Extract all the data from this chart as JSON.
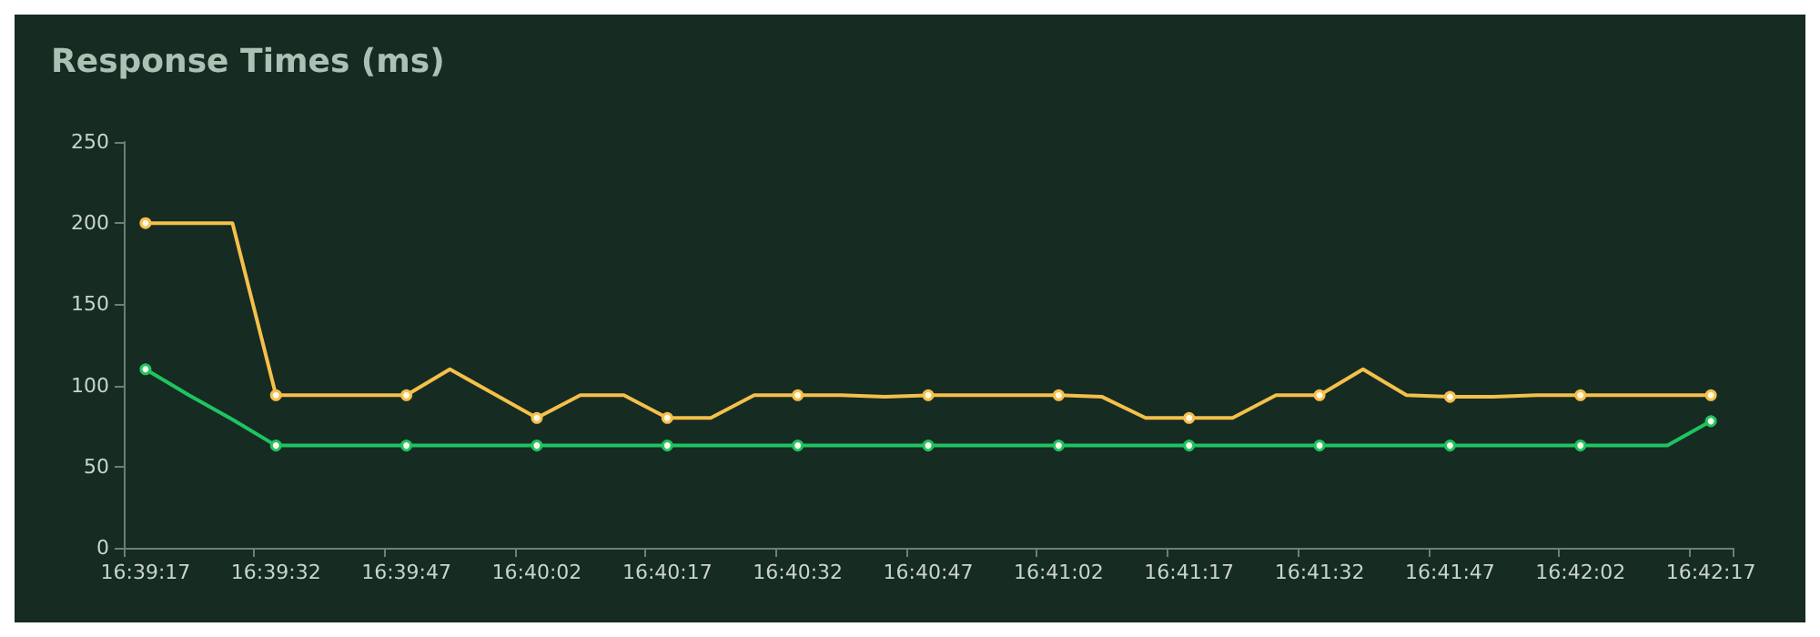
{
  "chart_data": {
    "type": "line",
    "title": "Response Times (ms)",
    "categories": [
      "16:39:17",
      null,
      null,
      "16:39:32",
      null,
      null,
      "16:39:47",
      null,
      null,
      "16:40:02",
      null,
      null,
      "16:40:17",
      null,
      null,
      "16:40:32",
      null,
      null,
      "16:40:47",
      null,
      null,
      "16:41:02",
      null,
      null,
      "16:41:17",
      null,
      null,
      "16:41:32",
      null,
      null,
      "16:41:47",
      null,
      null,
      "16:42:02",
      null,
      null,
      "16:42:17"
    ],
    "series": [
      {
        "color": "#f5c04a",
        "values": [
          200,
          200,
          200,
          94,
          94,
          94,
          94,
          110,
          95,
          80,
          94,
          94,
          80,
          80,
          94,
          94,
          94,
          93,
          94,
          94,
          94,
          94,
          93,
          80,
          80,
          80,
          94,
          94,
          110,
          94,
          93,
          93,
          94,
          94,
          94,
          94,
          94
        ]
      },
      {
        "color": "#1ec462",
        "values": [
          110,
          94,
          79,
          63,
          63,
          63,
          63,
          63,
          63,
          63,
          63,
          63,
          63,
          63,
          63,
          63,
          63,
          63,
          63,
          63,
          63,
          63,
          63,
          63,
          63,
          63,
          63,
          63,
          63,
          63,
          63,
          63,
          63,
          63,
          63,
          63,
          78
        ]
      }
    ],
    "ylim": [
      0,
      250
    ],
    "yticks": [
      0,
      50,
      100,
      150,
      200,
      250
    ],
    "grid": false,
    "line_style": "solid"
  }
}
